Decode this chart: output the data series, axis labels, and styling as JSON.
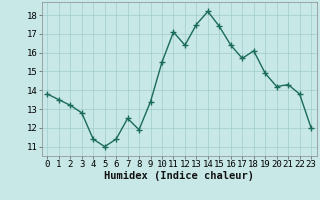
{
  "x": [
    0,
    1,
    2,
    3,
    4,
    5,
    6,
    7,
    8,
    9,
    10,
    11,
    12,
    13,
    14,
    15,
    16,
    17,
    18,
    19,
    20,
    21,
    22,
    23
  ],
  "y": [
    13.8,
    13.5,
    13.2,
    12.8,
    11.4,
    11.0,
    11.4,
    12.5,
    11.9,
    13.4,
    15.5,
    17.1,
    16.4,
    17.5,
    18.2,
    17.4,
    16.4,
    15.7,
    16.1,
    14.9,
    14.2,
    14.3,
    13.8,
    12.0
  ],
  "bg_color": "#c8e8e8",
  "line_color": "#1a6b5a",
  "marker_color": "#1a6b5a",
  "grid_color": "#a0cccc",
  "xlabel": "Humidex (Indice chaleur)",
  "xlim": [
    -0.5,
    23.5
  ],
  "ylim": [
    10.5,
    18.7
  ],
  "yticks": [
    11,
    12,
    13,
    14,
    15,
    16,
    17,
    18
  ],
  "xticks": [
    0,
    1,
    2,
    3,
    4,
    5,
    6,
    7,
    8,
    9,
    10,
    11,
    12,
    13,
    14,
    15,
    16,
    17,
    18,
    19,
    20,
    21,
    22,
    23
  ],
  "tick_fontsize": 6.5,
  "xlabel_fontsize": 7.5,
  "line_width": 1.0,
  "marker_size": 4
}
